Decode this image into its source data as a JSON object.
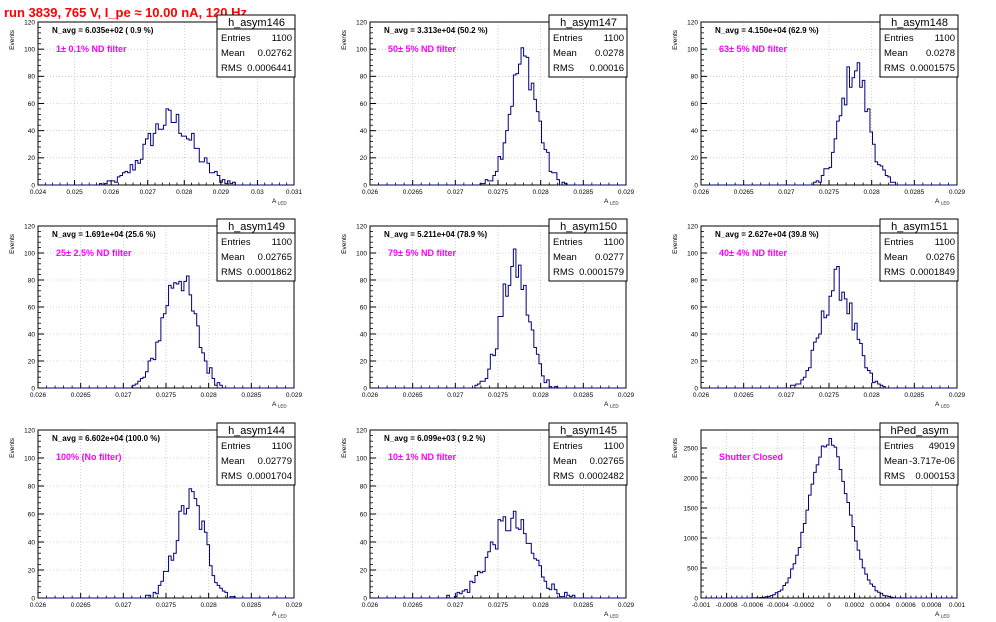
{
  "header": "run 3839,   765 V, I_pe ≈ 10.00 nA, 120 Hz",
  "axis_common": {
    "ylabel": "Events",
    "xlabel_main": "A",
    "xlabel_sub": "LED"
  },
  "stats_labels": {
    "entries": "Entries",
    "mean": "Mean",
    "rms": "RMS"
  },
  "colors": {
    "header": "#ff0000",
    "annotation": "#ff00ff",
    "histogram": "#000080",
    "axis": "#000000",
    "grid": "#b0b0b0"
  },
  "chart_data": [
    {
      "type": "bar",
      "histogram_style": "step",
      "hist_name": "h_asym146",
      "entries": "1100",
      "mean": "0.02762",
      "rms": "0.0006441",
      "n_avg": "N_avg = 6.035e+02 ( 0.9 %)",
      "filter": "1± 0.1% ND filter",
      "xlim": [
        0.024,
        0.031
      ],
      "ylim": [
        0,
        120
      ],
      "x_ticks": [
        "0.024",
        "0.025",
        "0.026",
        "0.027",
        "0.028",
        "0.029",
        "0.03",
        "0.031"
      ],
      "y_ticks": [
        "0",
        "20",
        "40",
        "60",
        "80",
        "100",
        "120"
      ],
      "grid": true,
      "peak_mean": 0.02762,
      "peak_sigma": 0.00064,
      "peak_height": 48
    },
    {
      "type": "bar",
      "histogram_style": "step",
      "hist_name": "h_asym147",
      "entries": "1100",
      "mean": "0.0278",
      "rms": "0.00016",
      "n_avg": "N_avg = 3.313e+04 (50.2 %)",
      "filter": "50± 5% ND filter",
      "xlim": [
        0.026,
        0.029
      ],
      "ylim": [
        0,
        120
      ],
      "x_ticks": [
        "0.026",
        "0.0265",
        "0.027",
        "0.0275",
        "0.028",
        "0.0285",
        "0.029"
      ],
      "y_ticks": [
        "0",
        "20",
        "40",
        "60",
        "80",
        "100",
        "120"
      ],
      "grid": true,
      "peak_mean": 0.0278,
      "peak_sigma": 0.00016,
      "peak_height": 92
    },
    {
      "type": "bar",
      "histogram_style": "step",
      "hist_name": "h_asym148",
      "entries": "1100",
      "mean": "0.0278",
      "rms": "0.0001575",
      "n_avg": "N_avg = 4.150e+04 (62.9 %)",
      "filter": "63± 5% ND filter",
      "xlim": [
        0.026,
        0.029
      ],
      "ylim": [
        0,
        120
      ],
      "x_ticks": [
        "0.026",
        "0.0265",
        "0.027",
        "0.0275",
        "0.028",
        "0.0285",
        "0.029"
      ],
      "y_ticks": [
        "0",
        "20",
        "40",
        "60",
        "80",
        "100",
        "120"
      ],
      "grid": true,
      "peak_mean": 0.0278,
      "peak_sigma": 0.000158,
      "peak_height": 86
    },
    {
      "type": "bar",
      "histogram_style": "step",
      "hist_name": "h_asym149",
      "entries": "1100",
      "mean": "0.02765",
      "rms": "0.0001862",
      "n_avg": "N_avg = 1.691e+04 (25.6 %)",
      "filter": "25± 2.5% ND filter",
      "xlim": [
        0.026,
        0.029
      ],
      "ylim": [
        0,
        120
      ],
      "x_ticks": [
        "0.026",
        "0.0265",
        "0.027",
        "0.0275",
        "0.028",
        "0.0285",
        "0.029"
      ],
      "y_ticks": [
        "0",
        "20",
        "40",
        "60",
        "80",
        "100",
        "120"
      ],
      "grid": true,
      "peak_mean": 0.02765,
      "peak_sigma": 0.000186,
      "peak_height": 84
    },
    {
      "type": "bar",
      "histogram_style": "step",
      "hist_name": "h_asym150",
      "entries": "1100",
      "mean": "0.0277",
      "rms": "0.0001579",
      "n_avg": "N_avg = 5.211e+04 (78.9 %)",
      "filter": "79± 5% ND filter",
      "xlim": [
        0.026,
        0.029
      ],
      "ylim": [
        0,
        120
      ],
      "x_ticks": [
        "0.026",
        "0.0265",
        "0.027",
        "0.0275",
        "0.028",
        "0.0285",
        "0.029"
      ],
      "y_ticks": [
        "0",
        "20",
        "40",
        "60",
        "80",
        "100",
        "120"
      ],
      "grid": true,
      "peak_mean": 0.0277,
      "peak_sigma": 0.000158,
      "peak_height": 90
    },
    {
      "type": "bar",
      "histogram_style": "step",
      "hist_name": "h_asym151",
      "entries": "1100",
      "mean": "0.0276",
      "rms": "0.0001849",
      "n_avg": "N_avg = 2.627e+04 (39.8 %)",
      "filter": "40± 4% ND filter",
      "xlim": [
        0.026,
        0.029
      ],
      "ylim": [
        0,
        120
      ],
      "x_ticks": [
        "0.026",
        "0.0265",
        "0.027",
        "0.0275",
        "0.028",
        "0.0285",
        "0.029"
      ],
      "y_ticks": [
        "0",
        "20",
        "40",
        "60",
        "80",
        "100",
        "120"
      ],
      "grid": true,
      "peak_mean": 0.0276,
      "peak_sigma": 0.000185,
      "peak_height": 78
    },
    {
      "type": "bar",
      "histogram_style": "step",
      "hist_name": "h_asym144",
      "entries": "1100",
      "mean": "0.02779",
      "rms": "0.0001704",
      "n_avg": "N_avg = 6.602e+04 (100.0 %)",
      "filter": "100% (No filter)",
      "xlim": [
        0.026,
        0.029
      ],
      "ylim": [
        0,
        120
      ],
      "x_ticks": [
        "0.026",
        "0.0265",
        "0.027",
        "0.0275",
        "0.028",
        "0.0285",
        "0.029"
      ],
      "y_ticks": [
        "0",
        "20",
        "40",
        "60",
        "80",
        "100",
        "120"
      ],
      "grid": true,
      "peak_mean": 0.02779,
      "peak_sigma": 0.00017,
      "peak_height": 70
    },
    {
      "type": "bar",
      "histogram_style": "step",
      "hist_name": "h_asym145",
      "entries": "1100",
      "mean": "0.02765",
      "rms": "0.0002482",
      "n_avg": "N_avg = 6.099e+03 ( 9.2 %)",
      "filter": "10± 1% ND filter",
      "xlim": [
        0.026,
        0.029
      ],
      "ylim": [
        0,
        120
      ],
      "x_ticks": [
        "0.026",
        "0.0265",
        "0.027",
        "0.0275",
        "0.028",
        "0.0285",
        "0.029"
      ],
      "y_ticks": [
        "0",
        "20",
        "40",
        "60",
        "80",
        "100",
        "120"
      ],
      "grid": true,
      "peak_mean": 0.02765,
      "peak_sigma": 0.000248,
      "peak_height": 54
    },
    {
      "type": "bar",
      "histogram_style": "step",
      "hist_name": "hPed_asym",
      "entries": "49019",
      "mean": "-3.717e-06",
      "rms": "0.000153",
      "n_avg": "",
      "filter": "Shutter Closed",
      "xlim": [
        -0.001,
        0.001
      ],
      "ylim": [
        0,
        2800
      ],
      "x_ticks": [
        "-0.001",
        "-0.0008",
        "-0.0006",
        "-0.0004",
        "-0.0002",
        "0",
        "0.0002",
        "0.0004",
        "0.0006",
        "0.0008",
        "0.001"
      ],
      "y_ticks": [
        "0",
        "500",
        "1000",
        "1500",
        "2000",
        "2500"
      ],
      "grid": true,
      "peak_mean": -3.7e-06,
      "peak_sigma": 0.000153,
      "peak_height": 2620
    }
  ]
}
